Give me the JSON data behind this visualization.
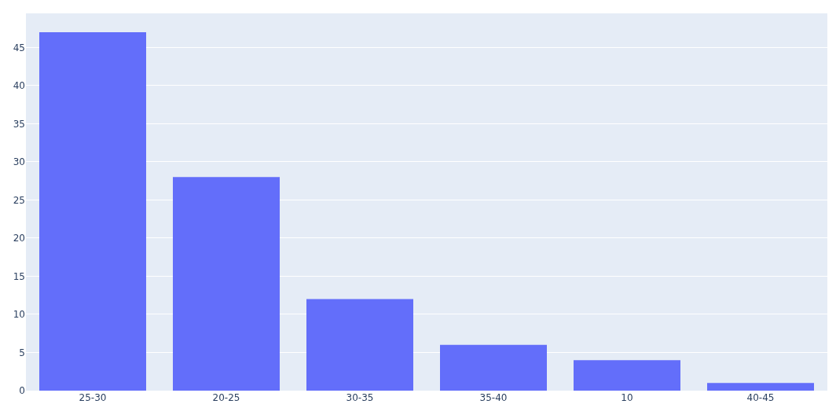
{
  "chart_data": {
    "type": "bar",
    "categories": [
      "25-30",
      "20-25",
      "30-35",
      "35-40",
      "10",
      "40-45"
    ],
    "values": [
      47,
      28,
      12,
      6,
      4,
      1
    ],
    "color": "#636efa",
    "ylim": [
      0,
      49.47
    ],
    "yticks": [
      0,
      5,
      10,
      15,
      20,
      25,
      30,
      35,
      40,
      45
    ],
    "grid": "y"
  }
}
